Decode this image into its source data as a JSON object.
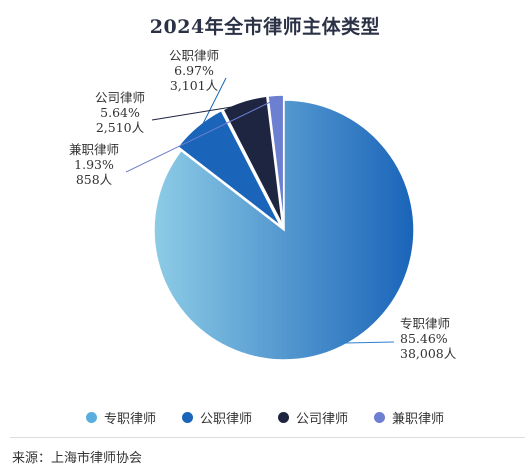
{
  "title": "2024年全市律师主体类型",
  "source": "来源：上海市律师协会",
  "chart_data": {
    "type": "pie",
    "title": "2024年全市律师主体类型",
    "slices": [
      {
        "name": "专职律师",
        "percent": 85.46,
        "percent_label": "85.46%",
        "count_label": "38,008人",
        "color": "#2f7fcf"
      },
      {
        "name": "公职律师",
        "percent": 6.97,
        "percent_label": "6.97%",
        "count_label": "3,101人",
        "color": "#1a64b9"
      },
      {
        "name": "公司律师",
        "percent": 5.64,
        "percent_label": "5.64%",
        "count_label": "2,510人",
        "color": "#1e2540"
      },
      {
        "name": "兼职律师",
        "percent": 1.93,
        "percent_label": "1.93%",
        "count_label": "858人",
        "color": "#6d7fd0"
      }
    ],
    "legend_position": "bottom"
  }
}
